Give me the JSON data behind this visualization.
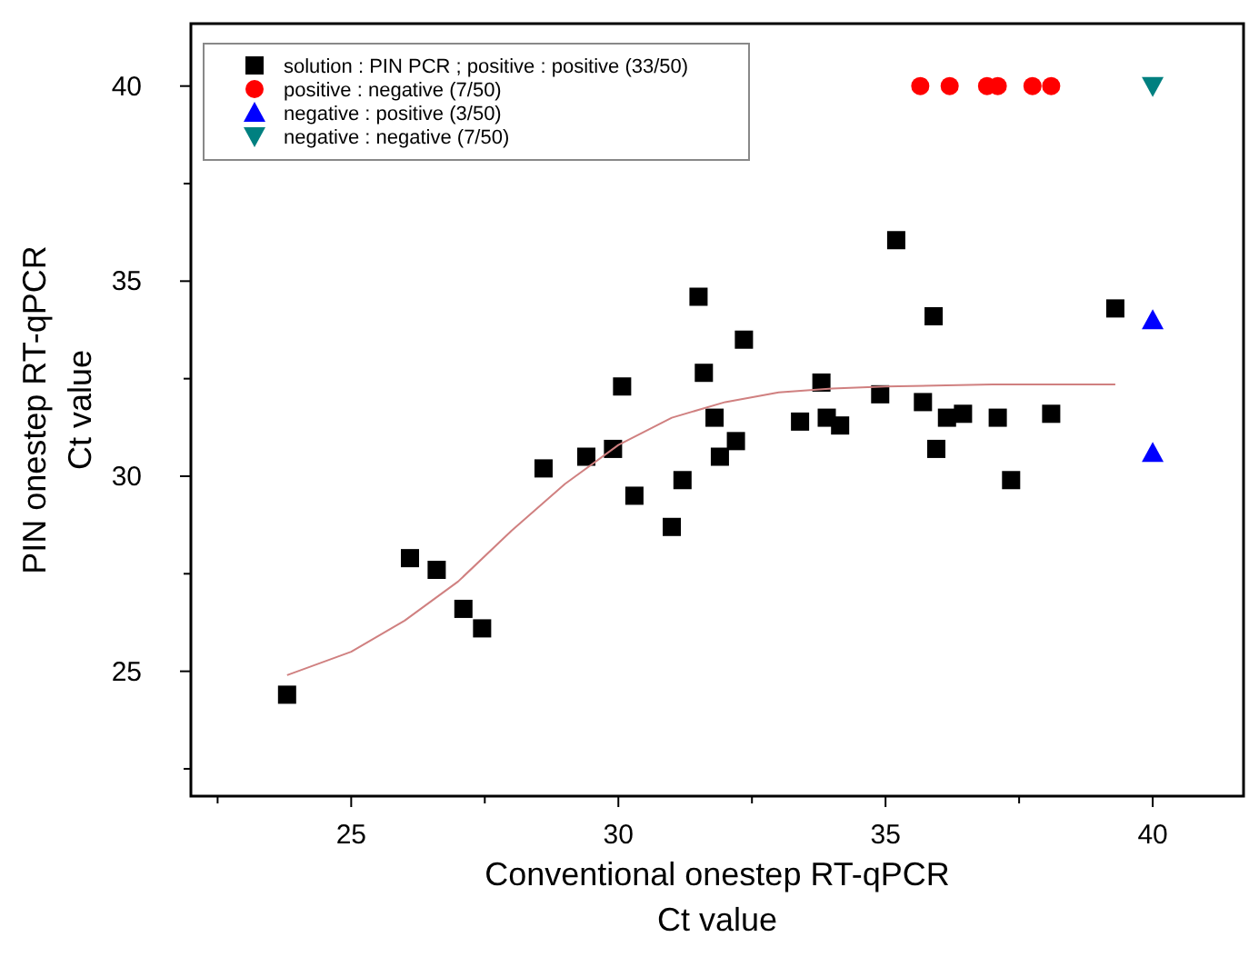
{
  "chart_data": {
    "type": "scatter",
    "xlabel": "Conventional onestep RT-qPCR\nCt value",
    "ylabel": "PIN onestep RT-qPCR\nCt value",
    "xlim": [
      22,
      41.7
    ],
    "ylim": [
      21.8,
      41.6
    ],
    "xticks": [
      {
        "value": 22.5,
        "label": null
      },
      25,
      {
        "value": 27.5,
        "label": null
      },
      30,
      {
        "value": 32.5,
        "label": null
      },
      35,
      {
        "value": 37.5,
        "label": null
      },
      40
    ],
    "yticks": [
      {
        "value": 22.5,
        "label": null
      },
      25,
      {
        "value": 27.5,
        "label": null
      },
      30,
      {
        "value": 32.5,
        "label": null
      },
      35,
      {
        "value": 37.5,
        "label": null
      },
      40
    ],
    "legend": "top left",
    "grid": false,
    "series": [
      {
        "name": "solution : PIN PCR ; positive : positive (33/50)",
        "color": "#000000",
        "marker": "square",
        "x": [
          31.5,
          32.35,
          31.6,
          30.07,
          31.8,
          32.2,
          31.9,
          28.6,
          29.4,
          29.9,
          30.3,
          31.2,
          31.0,
          26.1,
          26.6,
          27.1,
          27.45,
          23.8,
          35.2,
          35.9,
          39.3,
          33.8,
          34.9,
          35.7,
          33.4,
          33.9,
          34.15,
          36.15,
          36.45,
          37.1,
          38.1,
          35.95,
          37.35
        ],
        "values": [
          34.6,
          33.5,
          32.65,
          32.3,
          31.5,
          30.9,
          30.5,
          30.2,
          30.5,
          30.7,
          29.5,
          29.9,
          28.7,
          27.9,
          27.6,
          26.6,
          26.1,
          24.4,
          36.05,
          34.1,
          34.3,
          32.4,
          32.1,
          31.9,
          31.4,
          31.5,
          31.3,
          31.5,
          31.6,
          31.5,
          31.6,
          30.7,
          29.9
        ]
      },
      {
        "name": "positive : negative (7/50)",
        "color": "#ff0000",
        "marker": "circle",
        "x": [
          35.65,
          36.2,
          36.9,
          37.1,
          37.75,
          38.1
        ],
        "values": [
          40,
          40,
          40,
          40,
          40,
          40
        ]
      },
      {
        "name": "negative : positive (3/50)",
        "color": "#0000ff",
        "marker": "triangle",
        "x": [
          40,
          40
        ],
        "values": [
          34.0,
          30.6
        ]
      },
      {
        "name": "negative : negative  (7/50)",
        "color": "#008080",
        "marker": "triangle-down",
        "x": [
          40
        ],
        "values": [
          40
        ]
      },
      {
        "type": "line",
        "color": "#d08080",
        "marker": "none",
        "x": [
          23.8,
          25,
          26,
          27,
          28,
          29,
          30,
          31,
          32,
          33,
          34,
          35,
          37,
          39.3
        ],
        "values": [
          24.9,
          25.5,
          26.3,
          27.3,
          28.6,
          29.8,
          30.8,
          31.5,
          31.9,
          32.15,
          32.25,
          32.3,
          32.35,
          32.35
        ]
      }
    ]
  }
}
